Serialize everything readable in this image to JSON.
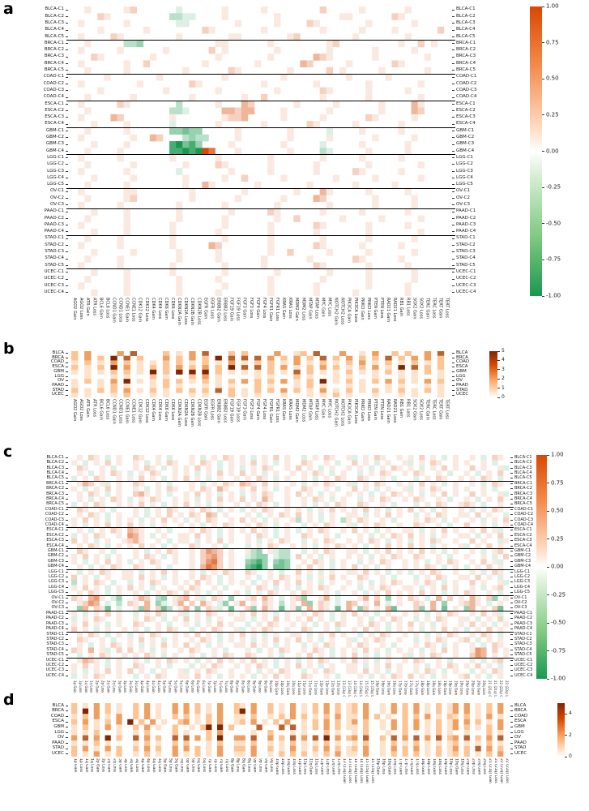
{
  "figure_description": "Four heatmap panels (a-d): cluster-level and cancer-level gene copy-number (Gain/Loss) and chromosome-arm (Gain/Loss) heatmaps across 10 cancer types",
  "row_labels": {
    "clusters": [
      "BLCA-C1",
      "BLCA-C2",
      "BLCA-C3",
      "BLCA-C4",
      "BLCA-C5",
      "BRCA-C1",
      "BRCA-C2",
      "BRCA-C3",
      "BRCA-C4",
      "BRCA-C5",
      "COAD-C1",
      "COAD-C2",
      "COAD-C3",
      "COAD-C4",
      "ESCA-C1",
      "ESCA-C2",
      "ESCA-C3",
      "ESCA-C4",
      "GBM-C1",
      "GBM-C2",
      "GBM-C3",
      "GBM-C4",
      "LGG-C1",
      "LGG-C2",
      "LGG-C3",
      "LGG-C4",
      "LGG-C5",
      "OV-C1",
      "OV-C2",
      "OV-C3",
      "PAAD-C1",
      "PAAD-C2",
      "PAAD-C3",
      "PAAD-C4",
      "STAD-C1",
      "STAD-C2",
      "STAD-C3",
      "STAD-C4",
      "STAD-C5",
      "UCEC-C1",
      "UCEC-C2",
      "UCEC-C3",
      "UCEC-C4"
    ],
    "cancers": [
      "BLCA",
      "BRCA",
      "COAD",
      "ESCA",
      "GBM",
      "LGG",
      "OV",
      "PAAD",
      "STAD",
      "UCEC"
    ]
  },
  "col_labels": {
    "genes": [
      "AGO2 Gain",
      "AGO2 Loss",
      "ATR Gain",
      "ATR Loss",
      "BCL6 Gain",
      "BCL6 Loss",
      "CCND1 Gain",
      "CCND1 Loss",
      "CCNE1 Gain",
      "CCNE1 Loss",
      "CDK12 Gain",
      "CDK12 Loss",
      "CDK4 Gain",
      "CDK4 Loss",
      "CDK6 Gain",
      "CDK6 Loss",
      "CDKN2A Gain",
      "CDKN2A Loss",
      "CDKN2B Gain",
      "CDKN2B Loss",
      "EGFR Gain",
      "EGFR Loss",
      "ERBB2 Gain",
      "ERBB2 Loss",
      "FGF19 Gain",
      "FGF19 Loss",
      "FGF3 Gain",
      "FGF3 Loss",
      "FGF4 Gain",
      "FGF4 Loss",
      "FGFR1 Gain",
      "FGFR1 Loss",
      "KRAS Gain",
      "KRAS Loss",
      "MDM2 Gain",
      "MDM2 Loss",
      "MTAP Gain",
      "MTAP Loss",
      "MYC Gain",
      "MYC Loss",
      "NOTCH2 Gain",
      "NOTCH2 Loss",
      "PIK3CA Gain",
      "PIK3CA Loss",
      "PRKCI Gain",
      "PRKCI Loss",
      "PTEN Gain",
      "PTEN Loss",
      "RAD21 Gain",
      "RAD21 Loss",
      "RB1 Gain",
      "RB1 Loss",
      "SOX2 Gain",
      "SOX2 Loss",
      "TERC Gain",
      "TERC Loss",
      "TERT Gain",
      "TERT Loss"
    ],
    "arms": [
      "1p Gain",
      "1p Loss",
      "1q Gain",
      "1q Loss",
      "2p Gain",
      "2p Loss",
      "2q Gain",
      "2q Loss",
      "3p Gain",
      "3p Loss",
      "3q Gain",
      "3q Loss",
      "4p Gain",
      "4p Loss",
      "4q Gain",
      "4q Loss",
      "5p Gain",
      "5p Loss",
      "5q Gain",
      "5q Loss",
      "6p Gain",
      "6p Loss",
      "6q Gain",
      "6q Loss",
      "7p Gain",
      "7p Loss",
      "7q Gain",
      "7q Loss",
      "8p Gain",
      "8p Loss",
      "8q Gain",
      "8q Loss",
      "9p Gain",
      "9p Loss",
      "9q Gain",
      "9q Loss",
      "10p Gain",
      "10p Loss",
      "10q Gain",
      "10q Loss",
      "11p Gain",
      "11p Loss",
      "11q Gain",
      "11q Loss",
      "12p Gain",
      "12p Loss",
      "12q Gain",
      "12q Loss",
      "13 (13q) Gain",
      "13 (13q) Loss",
      "14 (14q) Gain",
      "14 (14q) Loss",
      "15 (15q) Gain",
      "15 (15q) Loss",
      "16p Gain",
      "16p Loss",
      "16q Gain",
      "16q Loss",
      "17p Gain",
      "17p Loss",
      "17q Gain",
      "17q Loss",
      "18p Gain",
      "18p Loss",
      "18q Gain",
      "18q Loss",
      "19p Gain",
      "19p Loss",
      "19q Gain",
      "19q Loss",
      "20p Gain",
      "20p Loss",
      "20q Gain",
      "20q Loss",
      "21 (21q) Gain",
      "21 (21q) Loss",
      "22 (22q) Gain",
      "22 (22q) Loss"
    ]
  },
  "encoding": {
    "diverging_levels": {
      "a": -1,
      "b": -0.8,
      "c": -0.6,
      "d": -0.45,
      "e": -0.3,
      "f": -0.15,
      "g": 0,
      "h": 0.12,
      "i": 0.25,
      "j": 0.4,
      "k": 0.55,
      "l": 0.75,
      "m": 1
    },
    "neutral_char": "g",
    "sequential_neutral": "0"
  },
  "chart_data": [
    {
      "panel_label": "a",
      "type": "heatmap",
      "rows_ref": "clusters",
      "cols_ref": "genes",
      "group_breaks_after": [
        5,
        10,
        14,
        18,
        22,
        27,
        30,
        34,
        39
      ],
      "scale": {
        "min": -1,
        "max": 1,
        "palette": "diverging",
        "ticks": [
          "1.00",
          "0.75",
          "0.50",
          "0.25",
          "0.00",
          "-0.25",
          "-0.50",
          "-0.75",
          "-1.00"
        ],
        "positive_color": "#d94801",
        "negative_color": "#1a9850"
      },
      "cells": [
        "gghggggghiggggggfgggggghggggghggggggggiggggghgggggghggggg",
        "ggggihgggggggggeeffgggghggggggghggggggggghhggggggihgggggg",
        "ghgggggghgggggggffggggggghggggghggggihggggggghgggggghgggg",
        "gggghgggggghggggggggihggggggghgggggggghggggghgggghggggggi",
        "ghggggihgggggggghggggggghhggggggghigggggggghggggggghggggg",
        "gghgggggeedggggggggggghhgggggghgggggggghiggggggggghggighg",
        "ghggggghgggggghggggggighggggggghggggggghgggggghggggghgggg",
        "gggihggggggghggggggggghggggggghggggggjihgggggghggggggghgg",
        "ghgggggghggigggggggghggggggghggggggjiggggghggggggihgggggg",
        "gghggggghgggggggghggggggihggggggghgggggighggggghgggggghgg",
        "ggggghggggggghggggggggghgggggggghggggggggghggggghggggggg",
        "ghgggggggghgggggggihggggggggghggggggghggggggghggggggghgg",
        "gggghggggggggghggggggghgggggggghggggggihggggghggggghgggg",
        "gghgggggghgggggggghggggggghggigggggggghgggggghggggggghgg",
        "ghgggggihgggggggeggggghgggjigggggghggggghgggggghggggjhgg",
        "gghggggggggggggeefgggggjjijjgggghgggggghggggggghggggjigg",
        "ghggggjiggggggghggggggghiijggggghggggghggggggihggggghggg",
        "ggghgggghggggggfgggggghgggggghggggggihggggghgggggghggggg",
        "gghggggghggggggddcddggggghggggggghgggggfgggghggggghggggg",
        "ghggggggghggjigggedeegggghggggggghggggghgggggghggggghggg",
        "ggghgggghggggggbacbdgggghggggggghgggggfggggghgggggghgggg",
        "gghgggghgggggggbbabamlggghggggggghggggefggggghggggghgggg",
        "ghggggghggggggghgggggghggggggghggggggghggggghggggghggggg",
        "gghgggggghggggggghggggihgggggghgggggghggggggghggggggghgg",
        "ghgggggghgggggggfggggggghggggghgggggghgggggihggggghggggg",
        "ggghggggghggggggghggggghggiggggghggggggghggggghgggggghgg",
        "gghggggghgggggggghggjhgggggghggggggghgggggghggggghgggggg",
        "ghgggggghhgggggggghggggggghggggggghgggjhggggghggggghgggg",
        "gghggggghigggggggghgggggghgggggghggggjiggggggghggggghggg",
        "ghggggghgggggggghgggggghggggggghggggggghgggggghggggghggg",
        "ggghgggghggggggghggggggghgggggihgggggghggggghgggggghgggg",
        "gghggggghggggggghgggggghggggggghggigggggghggggghggggghgg",
        "ghgggggghgggggghggggggghgggggghggggggihgggggghggggghgggg",
        "ggghgggghgggggghgggggghggggggghgggggghggggggghggggggghgg",
        "gghgggghggggggghggggggghgggggghggggggghgggggghgggggghggg",
        "ghggggghggggggghgggggjiggggggghggggggihggggghggggghggggg",
        "ggghggggghgggggghggggghggggggghggiggggghggggghgggggghggg",
        "gghgggghgggggggghggggghgggggghgggggghggggggihggggghggggg",
        "ghggggghggggggghggggggghggggghgggggggihgggggghggggghgggg",
        "ggghgggghgggggghggggggghggggggghggggggghggggghgggggghggg",
        "gghggggghggggggghggggghggggggghggggggghgggggghgggggghggg",
        "ghgggggghggggggghgggggghgggggghgggggghggggggghggggghgggg",
        "ggghgggghggggggghggggghggggggghgggggghggggghggggggghgggg"
      ]
    },
    {
      "panel_label": "b",
      "type": "heatmap",
      "rows_ref": "cancers",
      "cols_ref": "genes",
      "scale": {
        "min": 0,
        "max": 5,
        "palette": "sequential",
        "ticks": [
          "5",
          "4",
          "3",
          "2",
          "1",
          "0"
        ],
        "high_color": "#7f2704",
        "mid_color": "#fdae6b"
      },
      "cells": [
        "2030000304000020103040002020000300120400030010300202003040",
        "2030205040200030203020504040403020302040203020204020303020",
        "1020103020101020201020103010202010301020102030102010201020",
        "2010205030102020302030205040402030102030201020301050402020",
        "1010102020105020505050201010102010402010102010102010102010",
        "0010001010002010002030100000101000201000101000100010100010",
        "1020103050101020201020102030202030102050102010203020103020",
        "1000102010001020100010101000201000102010001010001010001010",
        "2010202030102010202020402010202030201030102010201020102010",
        "1010001020001010001010002010100010001010201000100010100010"
      ]
    },
    {
      "panel_label": "c",
      "type": "heatmap",
      "rows_ref": "clusters",
      "cols_ref": "arms",
      "group_breaks_after": [
        5,
        10,
        14,
        18,
        22,
        27,
        30,
        34,
        39
      ],
      "scale": {
        "min": -1,
        "max": 1,
        "palette": "diverging",
        "ticks": [
          "1.00",
          "0.75",
          "0.50",
          "0.25",
          "0.00",
          "-0.25",
          "-0.50",
          "-0.75",
          "-1.00"
        ],
        "positive_color": "#d94801",
        "negative_color": "#1a9850"
      },
      "cells": [
        "ghgihgfghggihgghgfggghgfghgihghgfghgighggfghgihgghfghgihgghghgighgfghgghgfgihg",
        "hgfghgighgghgfghgihgghgihgfghghgighgfghggihgghgfggighgfghgghfghgihgghghgghgfgg",
        "gihgghgfggghgihgfghghgighgfghgfghgihgghgighgfghgghghgfghgihghgfghgighggighgghf",
        "ghgfghgihgfghgihgghghgfghgighgighgfghgghghgihgfghggfghgihgghgihgghgfgghgfghgig",
        "fghgihgghghgighgfghgighgfghgghghgihgfghgghgfghgihggihgghgfgggfghgihgghghgihgfg",
        "ghjighfghggihgghgfggghgfghgihgjihgighgghgfghgihgghfghgihgghghgighgfghgghgfgihg",
        "hgfghgighgghgfghgihgghgihgjhgghgighgfghggihgghgfggighgfghgghfghgihgghghgghgfgg",
        "ghgihgfghggijhghgfgghgighgfghgfghgihgghgighgfghgghghgfghgihghgfghgighggighgghf",
        "ghgfghgihgfghgihgghghgfghgighgighgjhgghgghgihgfghggfghgihgghgihgghgfgghgfghgig",
        "fghgihgghghgighgfghgighgfghgghghgihgfghgghgfghgihggihgghgfgggfghgihgghihgfgghg",
        "gihgghgfggghgfghgihgghgihgfghgfghgihgghghgfghgighghgighgfghgighgfghgghgfghgihg",
        "ghgihgfghgghgfghgighgihgjighggghgfghgihgighgfghgghhgfghgighggfghgihgghhgighggf",
        "hgighgfghghgfghgighgfghgihgghgighgfghggheghgfghgehgihgghgfggghgihgfghgghgfghgi",
        "hgfghgighgighgfghgghghgfghgihgghgihgfghggfghgihgghfghgihgghggihgghgfggigghgfgh",
        "ghgfghgihgjihgghgfggghgihgfghghgighgfghgfghgihgghgighgfghgghhgfghgighgghgighfg",
        "fghgihgghgkjhgfghgghhgighgfghgghgihgfghggihgghgfggghgfghgihgighgfghgghhgfghgig",
        "ighgfghgghijhgghgfghhgfghgighgghgfghgihggfghgihgghghgihgfghgfghgihgghggighggfh",
        "ghgihgfghghgighgfghggihgghgfgggfghgihgghghgfghgihghgfghgighgighgfghgghfghgighg",
        "gihgghgfggghgfghgihgghgikjighgghedghfeeggfghgihgghhgfghgighghgighgfghgghgfghig",
        "hgighgfghgghgihgfghgghgijkighggfeddgfeegighgfghgghghgfghgihggihgghgfgghgghgfgi",
        "hgfghgighgfghgihgghgghgiklighggdcbdgdcdgghgihgfghggfghgihgghghgfghgihgghgighfg",
        "ghgfghgihggihgghgfggghgjlkighggcbadgccdghgighgfghgighgfghgghghgihgfghgfghgighg",
        "gfghgihgghhgfghgighgghgfghgihggihgghgfggighgfghgghhgighgfghgfghgihgghgghgfgihg",
        "ighgfghgghhgighgfghgghgihgfghgghgfghgihghgfghgighggihgghgfgggfghgihgghhgighgfg",
        "eghgihgfggfghgihgghghgighgfghghgfghgighgighgfghgghghgfghgihgghgihgfghggighgghf",
        "hgighgfghgighgfghgghgihgghgfggghgihgfghgfghgihgghggfghgihgghhgfghgighgghgfghig",
        "ghgihgfghgghgfghgihgighgfghgghgfghgihgghgihgghgfgghgfghgighghgighgfghgihgghgfg",
        "ihgjkhgfdgghjigedghijghfgihgdgghigjhgfghidgghjgfggghjgigdghgihgfgjgighgjhgidgh",
        "ghikjgfgegihgjgdfghjgigjhgfdghjghgihgeghgjdgihgfgjighgjgfghggihgjgdgghijhgfghg",
        "gdjgihcgfgghdjgiceghjgdgihfgcggidgjhgcghdgjgihgcgjgdighgjcgggidgjgcghgdjghgicg",
        "hgfghgighggfghgihgghfghgihgghghgighgfghgghgihgfghgighgfghgghghgfghgihgghgighfg",
        "fghgihgghgghgihgfghgighgfghgghhgfghgighghgighgfghgghgfghgihggfghgihgghhgfghgig",
        "hgighgfghggihgghgfgghgfghgighggfghgihgghghgfghgihgghgihgfghgighgfghgghgighgfgh",
        "ighgfghgghghgfghgihggfghgihgghfghgihgghggihgghgfgghgighgfghghgfghgighgfghgighg",
        "ghgihgfghgfghgihgghghgighgfghgighgfghgghhgfghgighggfghgihgghghgfghgihgghgihgfg",
        "gihgghgfgghgighgfghgghgihgfghghgfghgighgighgfghgghfghgihgghggfghgihgghigfghghg",
        "ghgfghgihghgfghgighgighgfghgghhgighgfghggfghgihgghgihgghgfggghgihgfghgghgfgihg",
        "ihgjghfgigighgfghgghgihgghgfggghgfghgihgghgihgfghghgighgfghghgfghgighgghkjgigh",
        "gfghgihgghghgihgfghgghgfghgihggihgghgfgghgighgfghgighgfghgghfghgihgghggikjghgh",
        "ghjihgfghgghgfghgihghgfghgighghgighgfghgfghgihgghgighgfghgghgihgghgfggghgfghig",
        "hgighgfghggihgghgfgggfghgihgghghgihgfghgighgfghgghhgfghgighgghgfghgihghgighgfg",
        "hgfghgighgighgfghgghfghgihgghgghgfghgihggfghgihgghhgighgfghgghgihgfghggfghgihg",
        "fghgihgghggfghgihgghhgighgfghghgfghgighggihgghgfggghgfghgihgighgfghgghighgfghg"
      ]
    },
    {
      "panel_label": "d",
      "type": "heatmap",
      "rows_ref": "cancers",
      "cols_ref": "arms",
      "scale": {
        "min": 0,
        "max": 5,
        "palette": "sequential",
        "ticks": [
          "4",
          "2",
          "0"
        ],
        "high_color": "#7f2704",
        "mid_color": "#fdae6b"
      },
      "cells": [
        "201030201002030100303020103002103002010301020302012030010302030102013030102030",
        "205030201002030100303020103002503002010301020302012030010302030102013030102030",
        "102030103002030100202010203001102001020302010203011030201002020301021020103010",
        "203010203050203010023010203001203010203001020302013020010302030102013030201030",
        "102010301002030100200102505020000400040401020302011020010302030102013020102030",
        "101020001001020000201000203000001002000101000201001020001002000102010010002010",
        "304030502004030200404030205003304003020403040503023040020403040304023040203040",
        "101020100001020100202000102001102001010201010201001020010201020101012010102010",
        "203010302002030200303020103002203002010301020302012030010302030102013020403020",
        "201030102001020100301020103001103001020202010203011030010202020102012020102030"
      ]
    }
  ]
}
